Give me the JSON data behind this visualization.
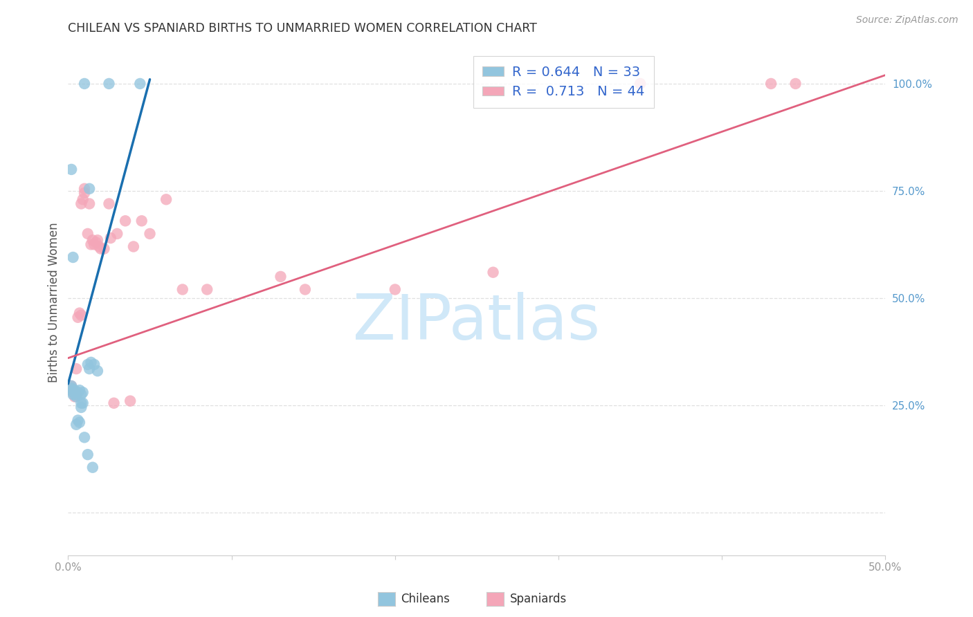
{
  "title": "CHILEAN VS SPANIARD BIRTHS TO UNMARRIED WOMEN CORRELATION CHART",
  "source": "Source: ZipAtlas.com",
  "ylabel": "Births to Unmarried Women",
  "xlabel_chileans": "Chileans",
  "xlabel_spaniards": "Spaniards",
  "chilean_color": "#92c5de",
  "spaniard_color": "#f4a6b8",
  "blue_line_color": "#1a6faf",
  "pink_line_color": "#e0607e",
  "legend_text_color": "#3366cc",
  "y_tick_color": "#5599cc",
  "x_tick_color": "#999999",
  "grid_color": "#e0e0e0",
  "background_color": "#ffffff",
  "title_color": "#333333",
  "source_color": "#999999",
  "xlim": [
    0.0,
    0.5
  ],
  "ylim": [
    -0.1,
    1.08
  ],
  "x_ticks": [
    0.0,
    0.1,
    0.2,
    0.3,
    0.4,
    0.5
  ],
  "x_tick_labels": [
    "0.0%",
    "",
    "",
    "",
    "",
    "50.0%"
  ],
  "y_ticks": [
    0.0,
    0.25,
    0.5,
    0.75,
    1.0
  ],
  "y_tick_labels": [
    "",
    "25.0%",
    "50.0%",
    "75.0%",
    "100.0%"
  ],
  "blue_line_x": [
    0.0,
    0.05
  ],
  "blue_line_y": [
    0.3,
    1.01
  ],
  "pink_line_x": [
    0.0,
    0.5
  ],
  "pink_line_y": [
    0.36,
    1.02
  ],
  "chilean_pts": [
    [
      0.002,
      0.295
    ],
    [
      0.002,
      0.29
    ],
    [
      0.003,
      0.285
    ],
    [
      0.003,
      0.28
    ],
    [
      0.003,
      0.275
    ],
    [
      0.004,
      0.285
    ],
    [
      0.004,
      0.28
    ],
    [
      0.005,
      0.275
    ],
    [
      0.005,
      0.27
    ],
    [
      0.006,
      0.28
    ],
    [
      0.007,
      0.285
    ],
    [
      0.008,
      0.275
    ],
    [
      0.009,
      0.28
    ],
    [
      0.003,
      0.595
    ],
    [
      0.013,
      0.755
    ],
    [
      0.002,
      0.8
    ],
    [
      0.012,
      0.345
    ],
    [
      0.013,
      0.335
    ],
    [
      0.014,
      0.35
    ],
    [
      0.016,
      0.345
    ],
    [
      0.018,
      0.33
    ],
    [
      0.008,
      0.255
    ],
    [
      0.009,
      0.255
    ],
    [
      0.005,
      0.205
    ],
    [
      0.006,
      0.215
    ],
    [
      0.007,
      0.21
    ],
    [
      0.01,
      1.0
    ],
    [
      0.025,
      1.0
    ],
    [
      0.044,
      1.0
    ],
    [
      0.008,
      0.245
    ],
    [
      0.01,
      0.175
    ],
    [
      0.012,
      0.135
    ],
    [
      0.015,
      0.105
    ]
  ],
  "spaniard_pts": [
    [
      0.002,
      0.295
    ],
    [
      0.002,
      0.29
    ],
    [
      0.003,
      0.285
    ],
    [
      0.003,
      0.28
    ],
    [
      0.004,
      0.275
    ],
    [
      0.004,
      0.27
    ],
    [
      0.005,
      0.275
    ],
    [
      0.006,
      0.455
    ],
    [
      0.007,
      0.465
    ],
    [
      0.008,
      0.46
    ],
    [
      0.008,
      0.72
    ],
    [
      0.009,
      0.73
    ],
    [
      0.01,
      0.755
    ],
    [
      0.01,
      0.745
    ],
    [
      0.012,
      0.65
    ],
    [
      0.013,
      0.72
    ],
    [
      0.014,
      0.625
    ],
    [
      0.015,
      0.635
    ],
    [
      0.016,
      0.625
    ],
    [
      0.017,
      0.63
    ],
    [
      0.018,
      0.635
    ],
    [
      0.019,
      0.62
    ],
    [
      0.02,
      0.615
    ],
    [
      0.022,
      0.615
    ],
    [
      0.025,
      0.72
    ],
    [
      0.026,
      0.64
    ],
    [
      0.03,
      0.65
    ],
    [
      0.035,
      0.68
    ],
    [
      0.04,
      0.62
    ],
    [
      0.045,
      0.68
    ],
    [
      0.05,
      0.65
    ],
    [
      0.06,
      0.73
    ],
    [
      0.07,
      0.52
    ],
    [
      0.085,
      0.52
    ],
    [
      0.13,
      0.55
    ],
    [
      0.145,
      0.52
    ],
    [
      0.2,
      0.52
    ],
    [
      0.26,
      0.56
    ],
    [
      0.35,
      1.0
    ],
    [
      0.43,
      1.0
    ],
    [
      0.445,
      1.0
    ],
    [
      0.028,
      0.255
    ],
    [
      0.038,
      0.26
    ],
    [
      0.005,
      0.335
    ]
  ],
  "watermark_text": "ZIPatlas",
  "watermark_color": "#d0e8f8"
}
